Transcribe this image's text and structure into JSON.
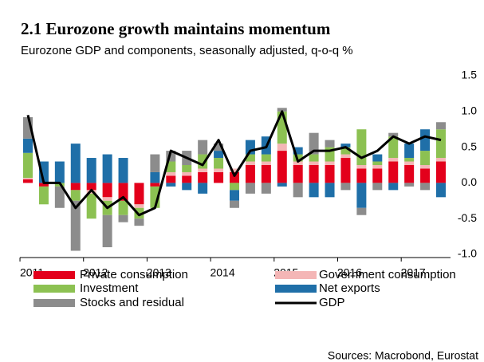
{
  "chart_data": {
    "type": "bar",
    "title": "2.1 Eurozone growth maintains momentum",
    "subtitle": "Eurozone GDP and components, seasonally adjusted, q-o-q %",
    "source": "Sources: Macrobond, Eurostat",
    "categories": [
      "2011",
      null,
      null,
      null,
      "2012",
      null,
      null,
      null,
      "2013",
      null,
      null,
      null,
      "2014",
      null,
      null,
      null,
      "2015",
      null,
      null,
      null,
      "2016",
      null,
      null,
      null,
      "2017",
      null,
      null
    ],
    "stacked": true,
    "ylim": [
      -1.0,
      1.5
    ],
    "yticks": [
      {
        "value": -1.0,
        "label": "-1.0"
      },
      -0.5,
      {
        "value": 0.0,
        "label": "0.0"
      },
      0.5,
      {
        "value": 1.0,
        "label": "1.0"
      },
      1.5
    ],
    "y_axis_side": "right",
    "grid": false,
    "series": [
      {
        "name": "Private consumption",
        "color": "#e3001b",
        "type": "bar",
        "values": [
          0.05,
          -0.05,
          0.0,
          -0.1,
          -0.1,
          -0.2,
          -0.25,
          -0.3,
          -0.05,
          0.1,
          0.1,
          0.15,
          0.15,
          0.15,
          0.25,
          0.25,
          0.45,
          0.25,
          0.25,
          0.25,
          0.35,
          0.2,
          0.2,
          0.3,
          0.25,
          0.2,
          0.3
        ]
      },
      {
        "name": "Government consumption",
        "color": "#f4b6b6",
        "type": "bar",
        "values": [
          0.02,
          0.0,
          0.0,
          0.0,
          -0.05,
          -0.05,
          0.0,
          -0.05,
          0.0,
          0.05,
          0.05,
          0.05,
          0.05,
          0.05,
          0.05,
          0.05,
          0.1,
          0.05,
          0.05,
          0.05,
          0.05,
          0.05,
          0.05,
          0.05,
          0.05,
          0.05,
          0.05
        ]
      },
      {
        "name": "Investment",
        "color": "#8cc152",
        "type": "bar",
        "values": [
          0.35,
          -0.25,
          -0.05,
          -0.15,
          -0.35,
          -0.2,
          -0.2,
          -0.15,
          -0.3,
          0.15,
          0.1,
          0.2,
          0.15,
          -0.1,
          0.1,
          0.1,
          0.45,
          0.1,
          0.1,
          0.2,
          0.1,
          0.5,
          0.05,
          0.3,
          0.05,
          0.2,
          0.4
        ]
      },
      {
        "name": "Net exports",
        "color": "#1f6fa8",
        "type": "bar",
        "values": [
          0.2,
          0.3,
          0.3,
          0.55,
          0.35,
          0.4,
          0.35,
          0.0,
          0.15,
          -0.05,
          -0.1,
          -0.15,
          0.1,
          -0.15,
          0.2,
          0.25,
          -0.05,
          0.1,
          -0.2,
          -0.2,
          0.05,
          -0.35,
          0.1,
          -0.1,
          0.2,
          0.3,
          -0.2
        ]
      },
      {
        "name": "Stocks and residual",
        "color": "#8c8c8c",
        "type": "bar",
        "values": [
          0.3,
          0.0,
          -0.3,
          -0.7,
          0.0,
          -0.45,
          -0.1,
          -0.1,
          0.25,
          0.15,
          0.2,
          0.2,
          0.1,
          -0.1,
          -0.15,
          -0.15,
          0.05,
          -0.2,
          0.3,
          0.1,
          -0.1,
          -0.1,
          -0.1,
          0.05,
          -0.05,
          -0.1,
          0.1
        ]
      },
      {
        "name": "GDP",
        "color": "#000000",
        "type": "line",
        "values": [
          0.95,
          0.0,
          0.0,
          -0.35,
          -0.1,
          -0.35,
          -0.2,
          -0.45,
          -0.35,
          0.45,
          0.35,
          0.25,
          0.6,
          0.1,
          0.45,
          0.5,
          1.0,
          0.3,
          0.45,
          0.45,
          0.5,
          0.35,
          0.45,
          0.65,
          0.55,
          0.65,
          0.6
        ]
      }
    ]
  }
}
